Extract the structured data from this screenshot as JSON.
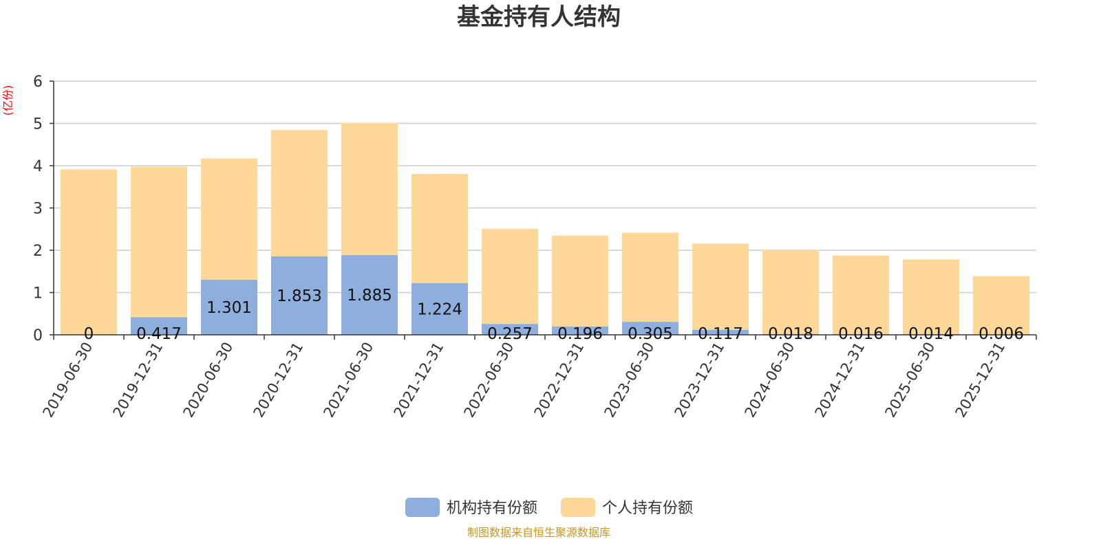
{
  "chart_data": {
    "type": "bar",
    "stacked": true,
    "title": "基金持有人结构",
    "y_unit": "(亿份)",
    "ylim": [
      0,
      6
    ],
    "y_ticks": [
      "0",
      "1",
      "2",
      "3",
      "4",
      "5",
      "6"
    ],
    "grid": true,
    "legend_position": "bottom",
    "categories": [
      "2019-06-30",
      "2019-12-31",
      "2020-06-30",
      "2020-12-31",
      "2021-06-30",
      "2021-12-31",
      "2022-06-30",
      "2022-12-31",
      "2023-06-30",
      "2023-12-31",
      "2024-06-30",
      "2024-12-31",
      "2025-06-30",
      "2025-12-31"
    ],
    "series": [
      {
        "name": "机构持有份额",
        "color": "#8eaedd",
        "values": [
          0,
          0.417,
          1.301,
          1.853,
          1.885,
          1.224,
          0.257,
          0.196,
          0.305,
          0.117,
          0.018,
          0.016,
          0.014,
          0.006
        ],
        "labels": [
          "0",
          "0.417",
          "1.301",
          "1.853",
          "1.885",
          "1.224",
          "0.257",
          "0.196",
          "0.305",
          "0.117",
          "0.018",
          "0.016",
          "0.014",
          "0.006"
        ]
      },
      {
        "name": "个人持有份额",
        "color": "#fdd898",
        "values": [
          3.91,
          3.56,
          2.87,
          2.99,
          3.13,
          2.58,
          2.25,
          2.15,
          2.11,
          2.04,
          1.99,
          1.86,
          1.77,
          1.38
        ]
      }
    ]
  },
  "source_note": "制图数据来自恒生聚源数据库"
}
